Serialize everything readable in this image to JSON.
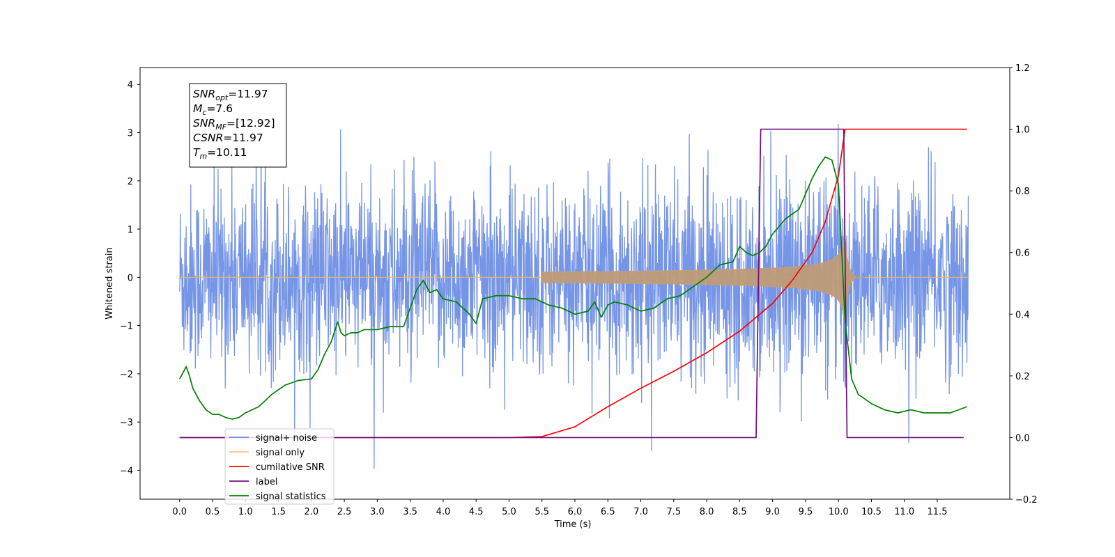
{
  "chart_data": {
    "type": "line",
    "xlabel": "Time (s)",
    "ylabel": "Whitened strain",
    "xlim": [
      -0.6,
      12.6
    ],
    "ylim": [
      -4.6,
      4.35
    ],
    "y2lim": [
      -0.2,
      1.2
    ],
    "x_ticks": [
      0.0,
      0.5,
      1.0,
      1.5,
      2.0,
      2.5,
      3.0,
      3.5,
      4.0,
      4.5,
      5.0,
      5.5,
      6.0,
      6.5,
      7.0,
      7.5,
      8.0,
      8.5,
      9.0,
      9.5,
      10.0,
      10.5,
      11.0,
      11.5
    ],
    "x_tick_labels": [
      "0.0",
      "0.5",
      "1.0",
      "1.5",
      "2.0",
      "2.5",
      "3.0",
      "3.5",
      "4.0",
      "4.5",
      "5.0",
      "5.5",
      "6.0",
      "6.5",
      "7.0",
      "7.5",
      "8.0",
      "8.5",
      "9.0",
      "9.5",
      "10.0",
      "10.5",
      "11.0",
      "11.5"
    ],
    "y_ticks": [
      -4,
      -3,
      -2,
      -1,
      0,
      1,
      2,
      3,
      4
    ],
    "y_tick_labels": [
      "−4",
      "−3",
      "−2",
      "−1",
      "0",
      "1",
      "2",
      "3",
      "4"
    ],
    "y2_ticks": [
      -0.2,
      0.0,
      0.2,
      0.4,
      0.6,
      0.8,
      1.0,
      1.2
    ],
    "y2_tick_labels": [
      "−0.2",
      "0.0",
      "0.2",
      "0.4",
      "0.6",
      "0.8",
      "1.0",
      "1.2"
    ],
    "grid": false,
    "legend_position": "lower-left",
    "info_box": {
      "lines": [
        {
          "base": "SNR",
          "sub": "opt",
          "value": "=11.97"
        },
        {
          "base": "M",
          "sub": "c",
          "value": "=7.6"
        },
        {
          "base": "SNR",
          "sub": "MF",
          "value": "=[12.92]"
        },
        {
          "base": "CSNR",
          "sub": "",
          "value": "=11.97"
        },
        {
          "base": "T",
          "sub": "m",
          "value": "=10.11"
        }
      ]
    },
    "series": [
      {
        "name": "signal+ noise",
        "color": "#6f8fe6",
        "axis": "left",
        "noise": {
          "envelope_low": [
            -2.9,
            -2.1
          ],
          "envelope_high": [
            2.0,
            3.0
          ],
          "peak_max": 3.95,
          "peak_min": -4.05
        }
      },
      {
        "name": "signal only",
        "color": "#f2b55e",
        "axis": "left",
        "chirp": {
          "start": 5.5,
          "merger": 10.1,
          "peak_amplitude": 0.9,
          "ringdown_end": 10.4
        }
      },
      {
        "name": "cumilative SNR",
        "color": "#ff0000",
        "axis": "right",
        "x": [
          0.0,
          5.0,
          5.5,
          6.0,
          6.5,
          7.0,
          7.5,
          8.0,
          8.5,
          9.0,
          9.3,
          9.6,
          9.8,
          10.0,
          10.1,
          11.0,
          11.95
        ],
        "y": [
          0.0,
          0.0,
          0.003,
          0.035,
          0.1,
          0.16,
          0.215,
          0.275,
          0.345,
          0.435,
          0.51,
          0.6,
          0.7,
          0.85,
          1.0,
          1.0,
          1.0
        ]
      },
      {
        "name": "label",
        "color": "#6e0f7f",
        "axis": "right",
        "x": [
          0.0,
          8.75,
          8.82,
          10.08,
          10.13,
          11.9
        ],
        "y": [
          0.0,
          0.0,
          1.0,
          1.0,
          0.0,
          0.0
        ]
      },
      {
        "name": "signal statistics",
        "color": "#008000",
        "axis": "right",
        "x": [
          0.0,
          0.05,
          0.1,
          0.15,
          0.2,
          0.3,
          0.4,
          0.5,
          0.6,
          0.7,
          0.8,
          0.9,
          1.0,
          1.2,
          1.4,
          1.6,
          1.8,
          2.0,
          2.1,
          2.2,
          2.3,
          2.4,
          2.45,
          2.5,
          2.6,
          2.7,
          2.8,
          3.0,
          3.2,
          3.4,
          3.6,
          3.7,
          3.8,
          3.9,
          4.0,
          4.2,
          4.4,
          4.5,
          4.6,
          4.8,
          5.0,
          5.2,
          5.4,
          5.6,
          5.8,
          6.0,
          6.2,
          6.3,
          6.4,
          6.5,
          6.6,
          6.8,
          7.0,
          7.2,
          7.4,
          7.6,
          7.8,
          8.0,
          8.2,
          8.4,
          8.5,
          8.6,
          8.7,
          8.8,
          8.9,
          9.0,
          9.2,
          9.4,
          9.6,
          9.7,
          9.8,
          9.9,
          10.0,
          10.1,
          10.2,
          10.3,
          10.5,
          10.7,
          10.9,
          11.1,
          11.3,
          11.5,
          11.7,
          11.95
        ],
        "y": [
          0.19,
          0.21,
          0.23,
          0.2,
          0.16,
          0.12,
          0.09,
          0.075,
          0.075,
          0.065,
          0.06,
          0.065,
          0.08,
          0.1,
          0.14,
          0.17,
          0.185,
          0.19,
          0.22,
          0.27,
          0.31,
          0.375,
          0.34,
          0.33,
          0.34,
          0.34,
          0.35,
          0.35,
          0.36,
          0.36,
          0.48,
          0.51,
          0.47,
          0.48,
          0.45,
          0.44,
          0.4,
          0.37,
          0.45,
          0.46,
          0.46,
          0.45,
          0.45,
          0.43,
          0.42,
          0.4,
          0.41,
          0.44,
          0.39,
          0.43,
          0.44,
          0.43,
          0.41,
          0.42,
          0.45,
          0.46,
          0.49,
          0.52,
          0.56,
          0.57,
          0.62,
          0.6,
          0.59,
          0.6,
          0.62,
          0.66,
          0.71,
          0.74,
          0.84,
          0.88,
          0.91,
          0.9,
          0.82,
          0.38,
          0.19,
          0.14,
          0.11,
          0.09,
          0.08,
          0.09,
          0.08,
          0.08,
          0.08,
          0.1
        ]
      }
    ],
    "legend_entries": [
      "signal+ noise",
      "signal only",
      "cumilative SNR",
      "label",
      "signal statistics"
    ],
    "legend_overlap_text": "signal only",
    "annotations_hidden_behind_legend": [
      "label only",
      "signal statistics"
    ]
  }
}
